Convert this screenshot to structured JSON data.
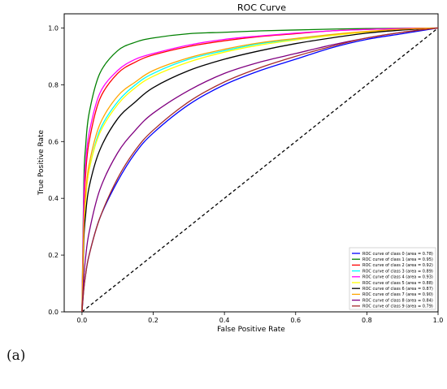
{
  "panel_label": "(a)",
  "chart_data": {
    "type": "line",
    "title": "ROC Curve",
    "xlabel": "False Positive Rate",
    "ylabel": "True Positive Rate",
    "xlim": [
      -0.05,
      1.0
    ],
    "ylim": [
      0.0,
      1.05
    ],
    "x_ticks": [
      "0.0",
      "0.2",
      "0.4",
      "0.6",
      "0.8",
      "1.0"
    ],
    "y_ticks": [
      "0.0",
      "0.2",
      "0.4",
      "0.6",
      "0.8",
      "1.0"
    ],
    "grid": false,
    "legend_position": "lower-right",
    "diagonal": {
      "x": [
        0,
        1
      ],
      "y": [
        0,
        1
      ],
      "style": "dashed",
      "color": "#000000"
    },
    "series": [
      {
        "name": "ROC curve of class 0 (area = 0.78)",
        "color": "#0000ff",
        "x": [
          0,
          0.005,
          0.01,
          0.02,
          0.05,
          0.1,
          0.15,
          0.2,
          0.3,
          0.4,
          0.5,
          0.6,
          0.7,
          0.8,
          0.9,
          1.0
        ],
        "y": [
          0,
          0.08,
          0.13,
          0.2,
          0.33,
          0.46,
          0.56,
          0.63,
          0.73,
          0.8,
          0.85,
          0.89,
          0.93,
          0.96,
          0.98,
          1.0
        ]
      },
      {
        "name": "ROC curve of class 1 (area = 0.95)",
        "color": "#008000",
        "x": [
          0,
          0.005,
          0.01,
          0.02,
          0.05,
          0.1,
          0.15,
          0.2,
          0.3,
          0.4,
          0.5,
          0.6,
          0.7,
          0.8,
          0.9,
          1.0
        ],
        "y": [
          0,
          0.45,
          0.58,
          0.7,
          0.84,
          0.92,
          0.95,
          0.965,
          0.98,
          0.985,
          0.99,
          0.993,
          0.996,
          0.998,
          0.999,
          1.0
        ]
      },
      {
        "name": "ROC curve of class 2 (area = 0.92)",
        "color": "#ff0000",
        "x": [
          0,
          0.005,
          0.01,
          0.02,
          0.05,
          0.1,
          0.15,
          0.2,
          0.3,
          0.4,
          0.5,
          0.6,
          0.7,
          0.8,
          0.9,
          1.0
        ],
        "y": [
          0,
          0.35,
          0.48,
          0.6,
          0.75,
          0.84,
          0.88,
          0.905,
          0.935,
          0.955,
          0.97,
          0.98,
          0.99,
          0.995,
          0.998,
          1.0
        ]
      },
      {
        "name": "ROC curve of class 3 (area = 0.89)",
        "color": "#00ffff",
        "x": [
          0,
          0.005,
          0.01,
          0.02,
          0.05,
          0.1,
          0.15,
          0.2,
          0.3,
          0.4,
          0.5,
          0.6,
          0.7,
          0.8,
          0.9,
          1.0
        ],
        "y": [
          0,
          0.3,
          0.4,
          0.5,
          0.64,
          0.74,
          0.8,
          0.84,
          0.89,
          0.92,
          0.945,
          0.96,
          0.975,
          0.987,
          0.995,
          1.0
        ]
      },
      {
        "name": "ROC curve of class 4 (area = 0.93)",
        "color": "#ff00ff",
        "x": [
          0,
          0.005,
          0.01,
          0.02,
          0.05,
          0.1,
          0.15,
          0.2,
          0.3,
          0.4,
          0.5,
          0.6,
          0.7,
          0.8,
          0.9,
          1.0
        ],
        "y": [
          0,
          0.4,
          0.52,
          0.63,
          0.77,
          0.85,
          0.89,
          0.91,
          0.94,
          0.96,
          0.972,
          0.982,
          0.99,
          0.995,
          0.998,
          1.0
        ]
      },
      {
        "name": "ROC curve of class 5 (area = 0.88)",
        "color": "#ffff00",
        "x": [
          0,
          0.005,
          0.01,
          0.02,
          0.05,
          0.1,
          0.15,
          0.2,
          0.3,
          0.4,
          0.5,
          0.6,
          0.7,
          0.8,
          0.9,
          1.0
        ],
        "y": [
          0,
          0.28,
          0.39,
          0.5,
          0.63,
          0.73,
          0.79,
          0.83,
          0.88,
          0.915,
          0.94,
          0.958,
          0.973,
          0.986,
          0.995,
          1.0
        ]
      },
      {
        "name": "ROC curve of class 6 (area = 0.87)",
        "color": "#000000",
        "x": [
          0,
          0.005,
          0.01,
          0.02,
          0.05,
          0.1,
          0.15,
          0.2,
          0.3,
          0.4,
          0.5,
          0.6,
          0.7,
          0.8,
          0.9,
          1.0
        ],
        "y": [
          0,
          0.25,
          0.34,
          0.44,
          0.57,
          0.68,
          0.74,
          0.79,
          0.85,
          0.89,
          0.92,
          0.945,
          0.965,
          0.982,
          0.993,
          1.0
        ]
      },
      {
        "name": "ROC curve of class 7 (area = 0.90)",
        "color": "#ffa500",
        "x": [
          0,
          0.005,
          0.01,
          0.02,
          0.05,
          0.1,
          0.15,
          0.2,
          0.3,
          0.4,
          0.5,
          0.6,
          0.7,
          0.8,
          0.9,
          1.0
        ],
        "y": [
          0,
          0.3,
          0.41,
          0.52,
          0.66,
          0.76,
          0.81,
          0.85,
          0.895,
          0.925,
          0.948,
          0.963,
          0.977,
          0.988,
          0.996,
          1.0
        ]
      },
      {
        "name": "ROC curve of class 8 (area = 0.84)",
        "color": "#800080",
        "x": [
          0,
          0.005,
          0.01,
          0.02,
          0.05,
          0.1,
          0.15,
          0.2,
          0.3,
          0.4,
          0.5,
          0.6,
          0.7,
          0.8,
          0.9,
          1.0
        ],
        "y": [
          0,
          0.12,
          0.19,
          0.28,
          0.43,
          0.56,
          0.64,
          0.7,
          0.78,
          0.84,
          0.88,
          0.91,
          0.94,
          0.965,
          0.985,
          1.0
        ]
      },
      {
        "name": "ROC curve of class 9 (area = 0.79)",
        "color": "#a52a2a",
        "x": [
          0,
          0.005,
          0.01,
          0.02,
          0.05,
          0.1,
          0.15,
          0.2,
          0.3,
          0.4,
          0.5,
          0.6,
          0.7,
          0.8,
          0.9,
          1.0
        ],
        "y": [
          0,
          0.08,
          0.13,
          0.2,
          0.33,
          0.47,
          0.57,
          0.64,
          0.74,
          0.81,
          0.86,
          0.9,
          0.935,
          0.965,
          0.985,
          1.0
        ]
      }
    ]
  }
}
